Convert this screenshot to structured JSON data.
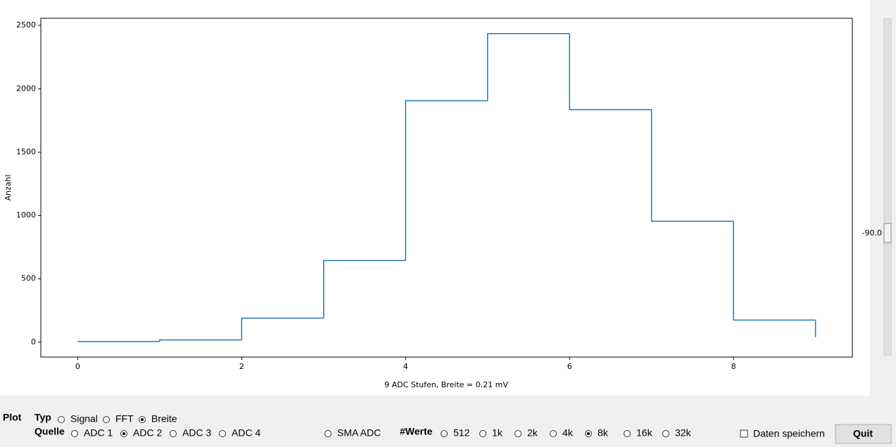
{
  "chart_data": {
    "type": "line",
    "drawstyle": "steps-post",
    "xlabel": "9 ADC Stufen, Breite = 0.21 mV",
    "ylabel": "Anzahl",
    "x": [
      0,
      1,
      2,
      3,
      4,
      5,
      6,
      7,
      8,
      9
    ],
    "values": [
      5,
      18,
      190,
      645,
      1905,
      2435,
      1835,
      955,
      175,
      40
    ],
    "color": "#1f77b4",
    "xlim": [
      -0.45,
      9.45
    ],
    "ylim": [
      -117,
      2556
    ],
    "xticks": [
      0,
      2,
      4,
      6,
      8
    ],
    "yticks": [
      0,
      500,
      1000,
      1500,
      2000,
      2500
    ]
  },
  "slider": {
    "label": "-90.0"
  },
  "controls": {
    "plot_label": "Plot",
    "typ": {
      "label": "Typ",
      "options": [
        "Signal",
        "FFT",
        "Breite"
      ],
      "selected": 2
    },
    "quelle": {
      "label": "Quelle",
      "options": [
        "ADC 1",
        "ADC 2",
        "ADC 3",
        "ADC 4",
        "SMA ADC"
      ],
      "selected": 1
    },
    "werte": {
      "label": "#Werte",
      "options": [
        "512",
        "1k",
        "2k",
        "4k",
        "8k",
        "16k",
        "32k"
      ],
      "selected": 4
    },
    "save": {
      "label": "Daten speichern",
      "checked": false
    },
    "quit": "Quit"
  }
}
